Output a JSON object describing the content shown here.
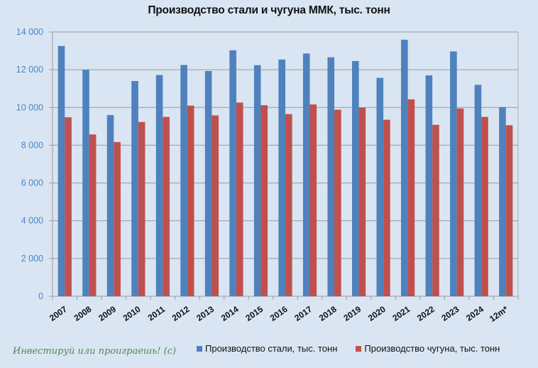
{
  "chart_data": {
    "type": "bar",
    "title": "Производство стали и чугуна ММК, тыс. тонн",
    "xlabel": "",
    "ylabel": "",
    "ylim": [
      0,
      14000
    ],
    "yticks": [
      0,
      2000,
      4000,
      6000,
      8000,
      10000,
      12000,
      14000
    ],
    "ytick_labels": [
      "0",
      "2 000",
      "4 000",
      "6 000",
      "8 000",
      "10 000",
      "12 000",
      "14 000"
    ],
    "grid": true,
    "legend_position": "bottom",
    "categories": [
      "2007",
      "2008",
      "2009",
      "2010",
      "2011",
      "2012",
      "2013",
      "2014",
      "2015",
      "2016",
      "2017",
      "2018",
      "2019",
      "2020",
      "2021",
      "2022",
      "2023",
      "2024",
      "12m*"
    ],
    "series": [
      {
        "name": "Производство стали, тыс. тонн",
        "color": "#4f81bd",
        "values": [
          13260,
          12000,
          9600,
          11400,
          11720,
          12250,
          11930,
          13030,
          12240,
          12540,
          12860,
          12660,
          12460,
          11570,
          13590,
          11700,
          12970,
          11200,
          10020
        ]
      },
      {
        "name": "Производство чугуна, тыс. тонн",
        "color": "#c0504d",
        "values": [
          9480,
          8570,
          8170,
          9230,
          9500,
          10100,
          9580,
          10260,
          10120,
          9650,
          10160,
          9880,
          9990,
          9350,
          10430,
          9080,
          9950,
          9500,
          9060
        ]
      }
    ]
  },
  "legend": {
    "steel_label": "Производство стали, тыс. тонн",
    "iron_label": "Производство чугуна, тыс. тонн"
  },
  "watermark": "Инвестируй или проиграешь! (с)"
}
